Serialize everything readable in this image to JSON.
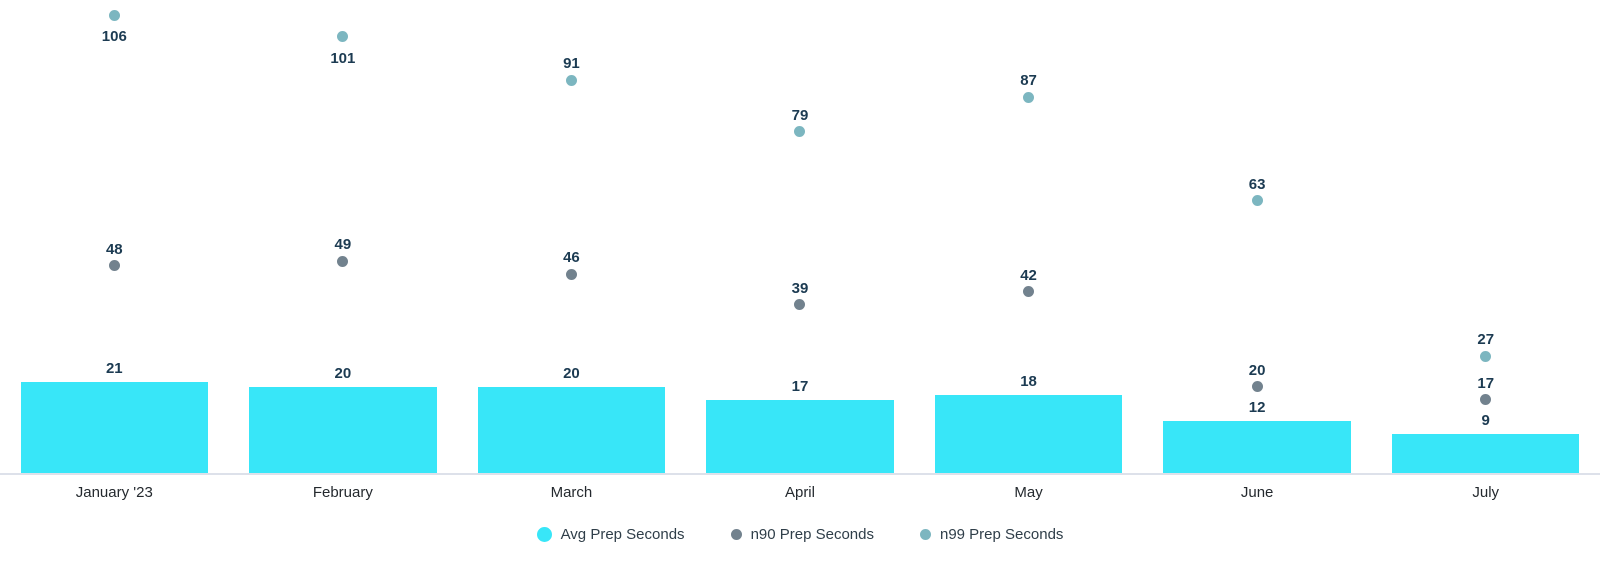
{
  "chart_data": {
    "type": "bar",
    "title": "",
    "xlabel": "",
    "ylabel": "",
    "ylim": [
      0,
      110
    ],
    "grid": false,
    "legend_position": "bottom",
    "value_labels": true,
    "categories": [
      "January '23",
      "February",
      "March",
      "April",
      "May",
      "June",
      "July"
    ],
    "series": [
      {
        "name": "Avg Prep Seconds",
        "mark": "bar",
        "color": "#38e6f8",
        "values": [
          21,
          20,
          20,
          17,
          18,
          12,
          9
        ]
      },
      {
        "name": "n90 Prep Seconds",
        "mark": "point",
        "color": "#72828e",
        "values": [
          48,
          49,
          46,
          39,
          42,
          20,
          17
        ]
      },
      {
        "name": "n99 Prep Seconds",
        "mark": "point",
        "color": "#7cb6c0",
        "values": [
          106,
          101,
          91,
          79,
          87,
          63,
          27
        ]
      }
    ]
  },
  "colors": {
    "bar": "#38e6f8",
    "n90_dot": "#72828e",
    "n99_dot": "#7cb6c0",
    "value_label": "#1c3b52",
    "axis_line": "#dde1ea",
    "x_label": "#24292e",
    "legend_text": "#2f3e49",
    "background": "#ffffff"
  }
}
